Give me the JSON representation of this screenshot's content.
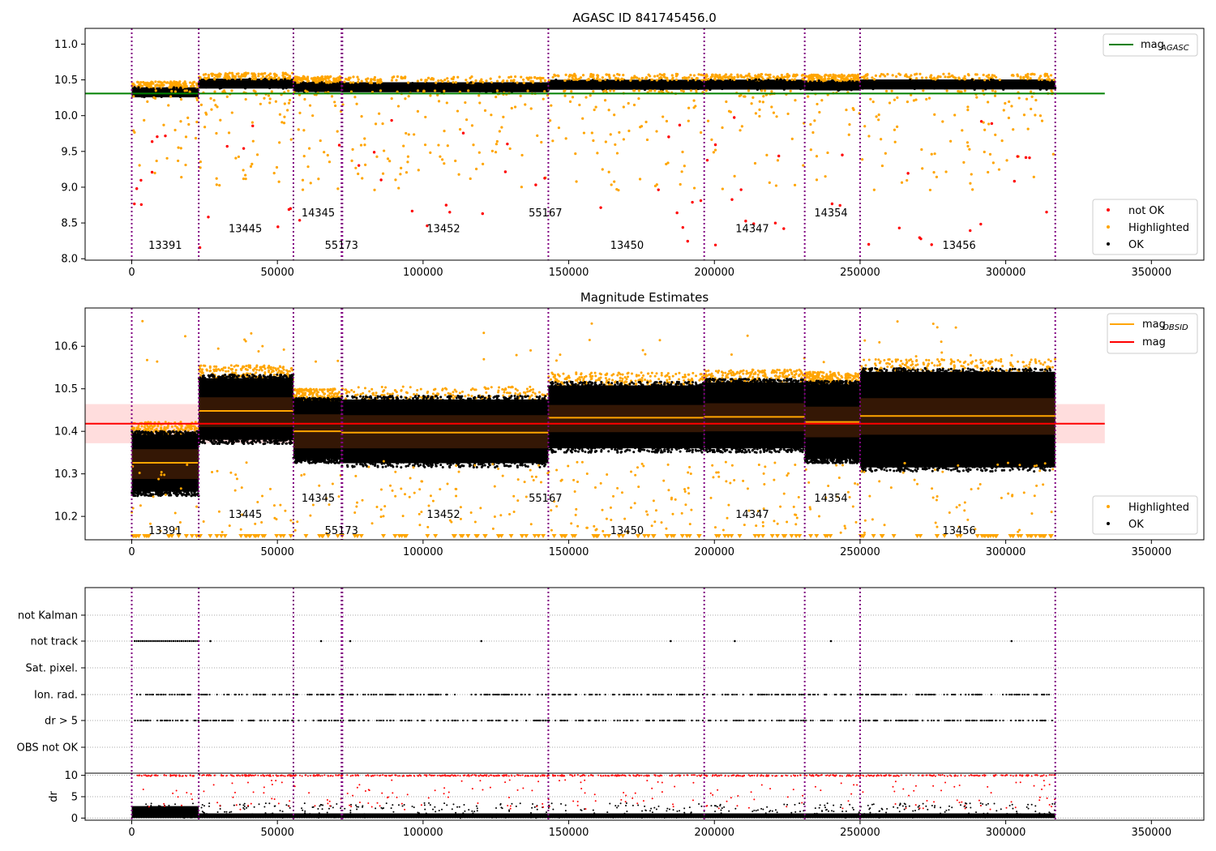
{
  "chart_data": [
    {
      "id": "panel1",
      "type": "scatter",
      "title": "AGASC ID 841745456.0",
      "xlim": [
        -16000,
        368000
      ],
      "ylim": [
        7.98,
        11.22
      ],
      "x_ticks": [
        0,
        50000,
        100000,
        150000,
        200000,
        250000,
        300000,
        350000
      ],
      "y_ticks": [
        8.0,
        8.5,
        9.0,
        9.5,
        10.0,
        10.5,
        11.0
      ],
      "y_tick_labels": [
        "8.0",
        "8.5",
        "9.0",
        "9.5",
        "10.0",
        "10.5",
        "11.0"
      ],
      "hline": {
        "y": 10.31,
        "x_range": [
          -16000,
          334000
        ],
        "color": "#008000"
      },
      "legend_top": {
        "position": "top-right",
        "entries": [
          {
            "label": "mag",
            "sub": "AGASC",
            "marker": "line",
            "color": "#008000"
          }
        ]
      },
      "legend_bottom": {
        "position": "bottom-right",
        "entries": [
          {
            "label": "not OK",
            "marker": "dot",
            "color": "#ff0000"
          },
          {
            "label": "Highlighted",
            "marker": "dot",
            "color": "#ffa500"
          },
          {
            "label": "OK",
            "marker": "dot",
            "color": "#000000"
          }
        ]
      },
      "obsid_labels": [
        {
          "text": "13391",
          "x": 11500,
          "y": 8.14
        },
        {
          "text": "13445",
          "x": 39000,
          "y": 8.37
        },
        {
          "text": "14345",
          "x": 64000,
          "y": 8.59
        },
        {
          "text": "55173",
          "x": 72000,
          "y": 8.14
        },
        {
          "text": "13452",
          "x": 107000,
          "y": 8.37
        },
        {
          "text": "55167",
          "x": 142000,
          "y": 8.59
        },
        {
          "text": "13450",
          "x": 170000,
          "y": 8.14
        },
        {
          "text": "14347",
          "x": 213000,
          "y": 8.37
        },
        {
          "text": "14354",
          "x": 240000,
          "y": 8.59
        },
        {
          "text": "13456",
          "x": 284000,
          "y": 8.14
        }
      ]
    },
    {
      "id": "panel2",
      "type": "scatter",
      "title": "Magnitude Estimates",
      "xlim": [
        -16000,
        368000
      ],
      "ylim": [
        10.145,
        10.69
      ],
      "x_ticks": [
        0,
        50000,
        100000,
        150000,
        200000,
        250000,
        300000,
        350000
      ],
      "y_ticks": [
        10.2,
        10.3,
        10.4,
        10.5,
        10.6
      ],
      "y_tick_labels": [
        "10.2",
        "10.3",
        "10.4",
        "10.5",
        "10.6"
      ],
      "mag_line": {
        "y": 10.418,
        "band": [
          10.372,
          10.464
        ],
        "x_range": [
          -16000,
          334000
        ],
        "color": "#ff0000"
      },
      "obsid_mags": [
        {
          "start": 0,
          "end": 23000,
          "mag": 10.326,
          "low": 10.288,
          "high": 10.358,
          "pt_low": 10.258,
          "pt_high": 10.392
        },
        {
          "start": 23000,
          "end": 55500,
          "mag": 10.448,
          "low": 10.41,
          "high": 10.48,
          "pt_low": 10.38,
          "pt_high": 10.525
        },
        {
          "start": 55500,
          "end": 72000,
          "mag": 10.4,
          "low": 10.36,
          "high": 10.44,
          "pt_low": 10.335,
          "pt_high": 10.47
        },
        {
          "start": 72000,
          "end": 143000,
          "mag": 10.397,
          "low": 10.36,
          "high": 10.438,
          "pt_low": 10.325,
          "pt_high": 10.475
        },
        {
          "start": 143000,
          "end": 196500,
          "mag": 10.432,
          "low": 10.398,
          "high": 10.462,
          "pt_low": 10.36,
          "pt_high": 10.508
        },
        {
          "start": 196500,
          "end": 231000,
          "mag": 10.434,
          "low": 10.4,
          "high": 10.466,
          "pt_low": 10.36,
          "pt_high": 10.515
        },
        {
          "start": 231000,
          "end": 250000,
          "mag": 10.422,
          "low": 10.386,
          "high": 10.458,
          "pt_low": 10.335,
          "pt_high": 10.51
        },
        {
          "start": 250000,
          "end": 317000,
          "mag": 10.436,
          "low": 10.392,
          "high": 10.478,
          "pt_low": 10.315,
          "pt_high": 10.54
        }
      ],
      "legend_top": {
        "position": "top-right",
        "entries": [
          {
            "label": "mag",
            "sub": "OBSID",
            "marker": "line",
            "color": "#ffa500"
          },
          {
            "label": "mag",
            "marker": "line",
            "color": "#ff0000"
          }
        ]
      },
      "legend_bottom": {
        "position": "bottom-right",
        "entries": [
          {
            "label": "Highlighted",
            "marker": "dot",
            "color": "#ffa500"
          },
          {
            "label": "OK",
            "marker": "dot",
            "color": "#000000"
          }
        ]
      },
      "obsid_labels": [
        {
          "text": "13391",
          "x": 11500,
          "y": 10.158
        },
        {
          "text": "13445",
          "x": 39000,
          "y": 10.196
        },
        {
          "text": "14345",
          "x": 64000,
          "y": 10.235
        },
        {
          "text": "55173",
          "x": 72000,
          "y": 10.158
        },
        {
          "text": "13452",
          "x": 107000,
          "y": 10.196
        },
        {
          "text": "55167",
          "x": 142000,
          "y": 10.235
        },
        {
          "text": "13450",
          "x": 170000,
          "y": 10.158
        },
        {
          "text": "14347",
          "x": 213000,
          "y": 10.196
        },
        {
          "text": "14354",
          "x": 240000,
          "y": 10.235
        },
        {
          "text": "13456",
          "x": 284000,
          "y": 10.158
        }
      ]
    },
    {
      "id": "panel3",
      "type": "scatter",
      "categories": [
        "not Kalman",
        "not track",
        "Sat. pixel.",
        "Ion. rad.",
        "dr > 5",
        "OBS not OK"
      ],
      "xlim": [
        -16000,
        368000
      ]
    },
    {
      "id": "panel4",
      "type": "scatter",
      "ylabel": "dr",
      "ylim": [
        -0.5,
        10.5
      ],
      "y_ticks": [
        0,
        5,
        10
      ],
      "y_tick_labels": [
        "0",
        "5",
        "10"
      ],
      "x_ticks": [
        0,
        50000,
        100000,
        150000,
        200000,
        250000,
        300000,
        350000
      ],
      "x_tick_labels": [
        "0",
        "50000",
        "100000",
        "150000",
        "200000",
        "250000",
        "300000",
        "350000"
      ],
      "xlim": [
        -16000,
        368000
      ]
    }
  ],
  "obsid_boundaries": [
    0,
    23000,
    55500,
    72000,
    72300,
    143000,
    196500,
    231000,
    250000,
    317000
  ],
  "x_tick_labels": [
    "0",
    "50000",
    "100000",
    "150000",
    "200000",
    "250000",
    "300000",
    "350000"
  ],
  "colors": {
    "ok": "#000000",
    "highlighted": "#ffa500",
    "not_ok": "#ff0000",
    "agasc": "#008000",
    "boundary": "#800080"
  }
}
